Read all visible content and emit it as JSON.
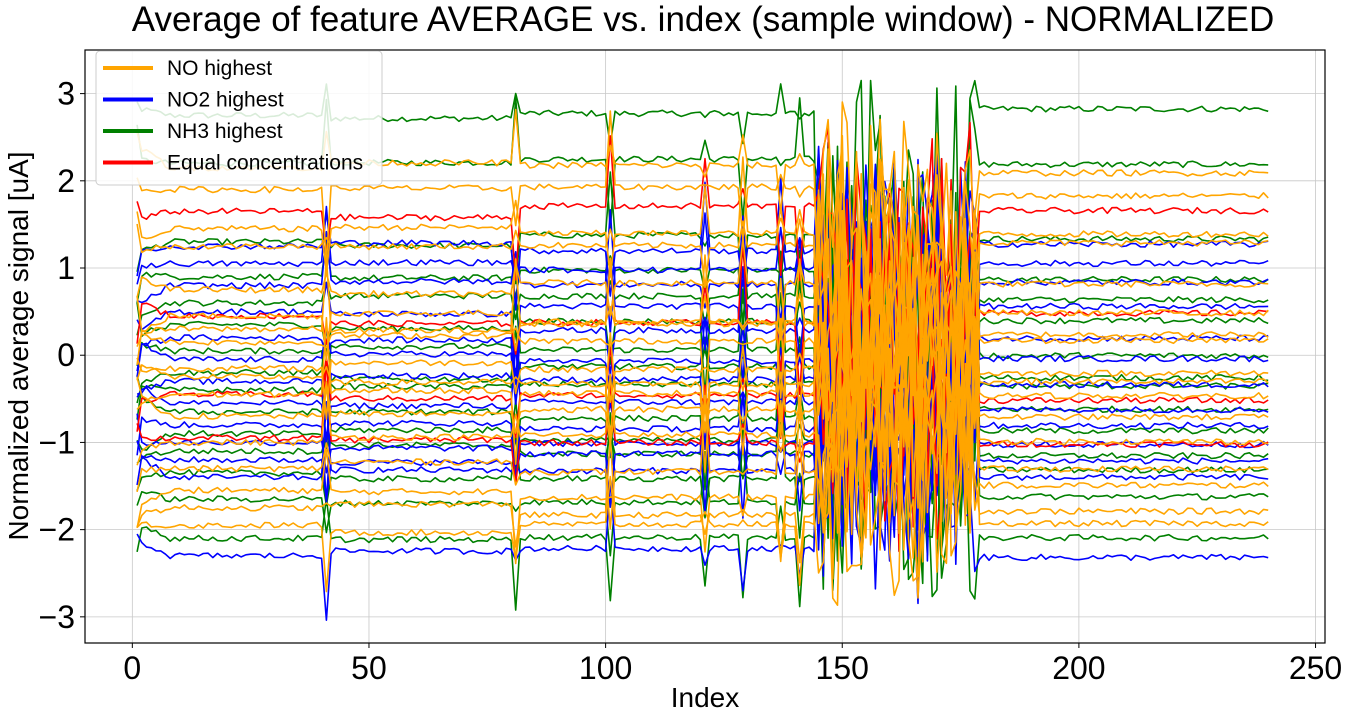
{
  "chart_data": {
    "type": "line",
    "title": "Average of feature AVERAGE vs. index (sample window) - NORMALIZED",
    "xlabel": "Index",
    "ylabel": "Normalized average signal [uA]",
    "xlim": [
      -10,
      252
    ],
    "ylim": [
      -3.3,
      3.5
    ],
    "xticks": [
      0,
      50,
      100,
      150,
      200,
      250
    ],
    "yticks": [
      3,
      2,
      1,
      0,
      -1,
      -2,
      -3
    ],
    "ytick_labels": [
      "3",
      "2",
      "1",
      "0",
      "−1",
      "−2",
      "−3"
    ],
    "grid": true,
    "legend_position": "top-left",
    "x_range": [
      1,
      240
    ],
    "transient_indices": [
      41,
      81,
      101,
      121,
      129,
      137,
      141
    ],
    "noisy_window": [
      145,
      178
    ],
    "series": [
      {
        "name": "NO highest",
        "color": "#FFA500",
        "levels": [
          2.15,
          1.9,
          1.45,
          1.25,
          0.75,
          0.45,
          0.3,
          0.15,
          -0.15,
          -0.25,
          -0.45,
          -0.7,
          -1.0,
          -1.3,
          -1.55,
          -1.75,
          -1.95
        ]
      },
      {
        "name": "NO2 highest",
        "color": "#0000FF",
        "levels": [
          1.25,
          1.05,
          0.8,
          0.5,
          0.2,
          -0.05,
          -0.3,
          -0.55,
          -0.8,
          -1.0,
          -1.2,
          -1.4,
          -2.3
        ]
      },
      {
        "name": "NH3 highest",
        "color": "#008000",
        "levels": [
          2.75,
          2.2,
          1.3,
          0.9,
          0.6,
          0.35,
          0.05,
          -0.2,
          -0.4,
          -0.65,
          -0.9,
          -1.1,
          -1.35,
          -1.65,
          -2.1
        ]
      },
      {
        "name": "Equal concentrations",
        "color": "#FF0000",
        "levels": [
          1.65,
          0.45,
          -0.45,
          -0.95
        ]
      }
    ]
  }
}
